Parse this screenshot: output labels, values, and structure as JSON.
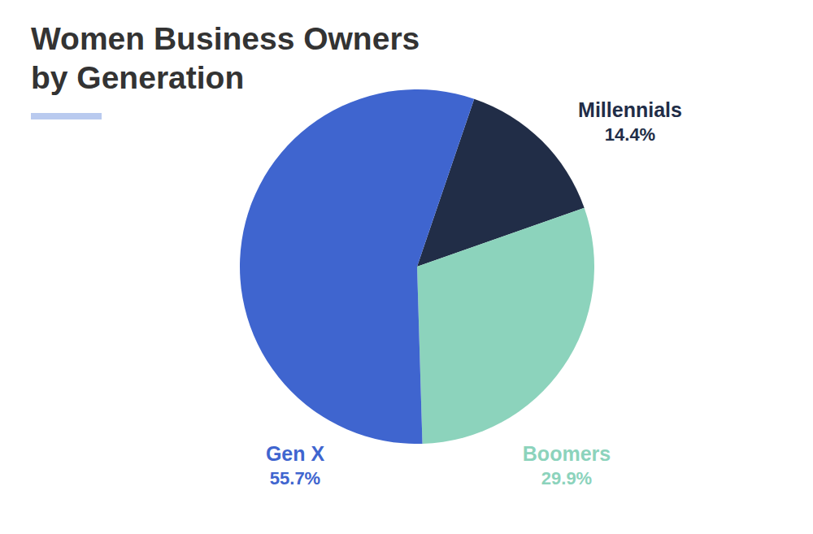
{
  "chart_data": {
    "type": "pie",
    "title": "Women Business Owners\nby Generation",
    "categories": [
      "Millennials",
      "Boomers",
      "Gen X"
    ],
    "values": [
      14.4,
      29.9,
      55.7
    ],
    "value_labels": [
      "14.4%",
      "29.9%",
      "55.7%"
    ],
    "colors": [
      "#212d47",
      "#8cd3bc",
      "#3f65cf"
    ],
    "data_labels": true
  }
}
